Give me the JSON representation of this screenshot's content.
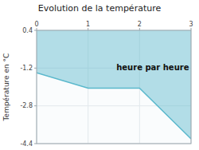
{
  "chart_data": {
    "type": "area",
    "title": "Evolution de la température",
    "ylabel": "Température en °C",
    "annotations": [
      {
        "text": "heure par heure",
        "x": 1.55,
        "y": -1.05
      }
    ],
    "x": [
      0,
      1,
      2,
      3
    ],
    "values": [
      -1.4,
      -2.05,
      -2.05,
      -4.2
    ],
    "fill_to": 0.4,
    "color": "#5ab8cc",
    "xlim": [
      0,
      3
    ],
    "ylim": [
      -4.4,
      0.4
    ],
    "xticks": [
      0,
      1,
      2,
      3
    ],
    "yticks": [
      0.4,
      -1.2,
      -2.8,
      -4.4
    ],
    "grid": true
  }
}
